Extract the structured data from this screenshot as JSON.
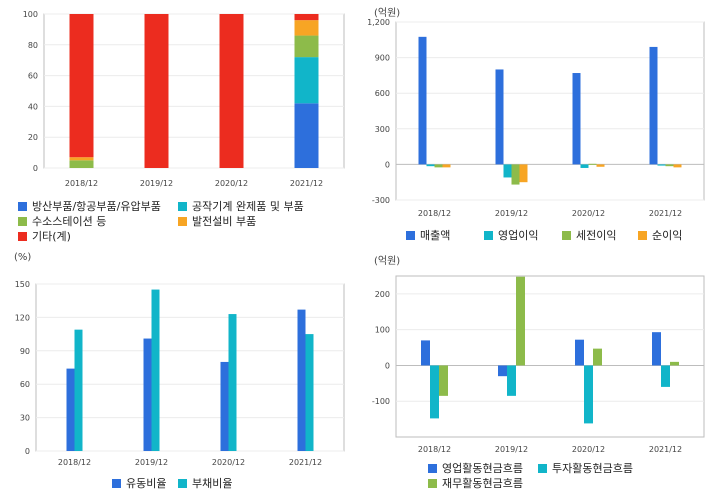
{
  "colors": {
    "blue": "#2d6fdc",
    "cyan": "#11b5c9",
    "green": "#8dbb4a",
    "orange": "#f7a524",
    "red": "#ec2c1f"
  },
  "chart_data": [
    {
      "id": "composition",
      "type": "bar",
      "stacked": true,
      "categories": [
        "2018/12",
        "2019/12",
        "2020/12",
        "2021/12"
      ],
      "ylim": [
        0,
        100
      ],
      "yticks": [
        0,
        20,
        40,
        60,
        80,
        100
      ],
      "unit": "",
      "series": [
        {
          "name": "방산부품/항공부품/유압부품",
          "color": "#2d6fdc",
          "values": [
            0,
            0,
            0,
            42
          ]
        },
        {
          "name": "공작기계 완제품 및 부품",
          "color": "#11b5c9",
          "values": [
            0,
            0,
            0,
            30
          ]
        },
        {
          "name": "수소스테이션 등",
          "color": "#8dbb4a",
          "values": [
            5,
            0,
            0,
            14
          ]
        },
        {
          "name": "발전설비 부품",
          "color": "#f7a524",
          "values": [
            2,
            0,
            0,
            10
          ]
        },
        {
          "name": "기타(계)",
          "color": "#ec2c1f",
          "values": [
            93,
            100,
            100,
            4
          ]
        }
      ]
    },
    {
      "id": "income",
      "type": "bar",
      "categories": [
        "2018/12",
        "2019/12",
        "2020/12",
        "2021/12"
      ],
      "ylim": [
        -300,
        1200
      ],
      "yticks": [
        -300,
        0,
        300,
        600,
        900,
        1200
      ],
      "ytick_labels": [
        "-300",
        "0",
        "300",
        "600",
        "900",
        "1,200"
      ],
      "unit": "(억원)",
      "series": [
        {
          "name": "매출액",
          "color": "#2d6fdc",
          "values": [
            1075,
            800,
            770,
            990
          ]
        },
        {
          "name": "영업이익",
          "color": "#11b5c9",
          "values": [
            -15,
            -110,
            -30,
            -10
          ]
        },
        {
          "name": "세전이익",
          "color": "#8dbb4a",
          "values": [
            -25,
            -170,
            5,
            -15
          ]
        },
        {
          "name": "순이익",
          "color": "#f7a524",
          "values": [
            -25,
            -150,
            -20,
            -25
          ]
        }
      ]
    },
    {
      "id": "ratios",
      "type": "bar",
      "categories": [
        "2018/12",
        "2019/12",
        "2020/12",
        "2021/12"
      ],
      "ylim": [
        0,
        150
      ],
      "yticks": [
        0,
        30,
        60,
        90,
        120,
        150
      ],
      "unit": "(%)",
      "series": [
        {
          "name": "유동비율",
          "color": "#2d6fdc",
          "values": [
            74,
            101,
            80,
            127
          ]
        },
        {
          "name": "부채비율",
          "color": "#11b5c9",
          "values": [
            109,
            145,
            123,
            105
          ]
        }
      ]
    },
    {
      "id": "cashflow",
      "type": "bar",
      "categories": [
        "2018/12",
        "2019/12",
        "2020/12",
        "2021/12"
      ],
      "ylim": [
        -200,
        250
      ],
      "yticks": [
        -100,
        0,
        100,
        200
      ],
      "unit": "(억원)",
      "series": [
        {
          "name": "영업활동현금흐름",
          "color": "#2d6fdc",
          "values": [
            70,
            -30,
            72,
            93
          ]
        },
        {
          "name": "투자활동현금흐름",
          "color": "#11b5c9",
          "values": [
            -148,
            -85,
            -162,
            -60
          ]
        },
        {
          "name": "재무활동현금흐름",
          "color": "#8dbb4a",
          "values": [
            -85,
            248,
            47,
            10
          ]
        }
      ]
    }
  ]
}
